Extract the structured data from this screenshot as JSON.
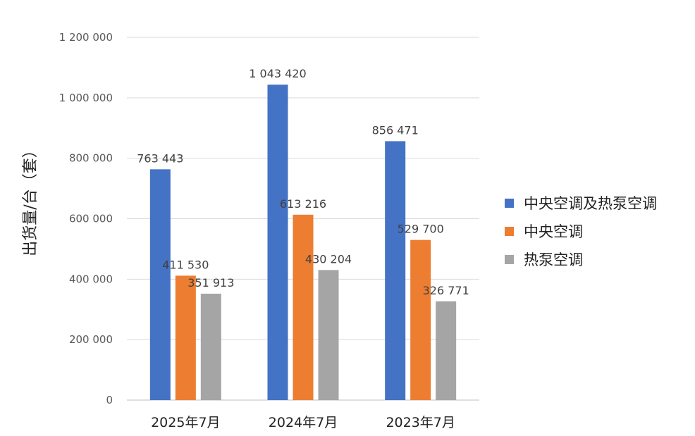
{
  "chart_data": {
    "type": "bar",
    "title": "",
    "xlabel": "",
    "ylabel": "出货量/台（套）",
    "ylim": [
      0,
      1200000
    ],
    "yticks": [
      0,
      200000,
      400000,
      600000,
      800000,
      1000000,
      1200000
    ],
    "ytick_labels": [
      "0",
      "200 000",
      "400 000",
      "600 000",
      "800 000",
      "1 000 000",
      "1 200 000"
    ],
    "grid": true,
    "legend_position": "right",
    "categories": [
      "2025年7月",
      "2024年7月",
      "2023年7月"
    ],
    "series": [
      {
        "name": "中央空调及热泵空调",
        "color": "#4472C4",
        "values": [
          763443,
          1043420,
          856471
        ],
        "labels": [
          "763 443",
          "1 043 420",
          "856 471"
        ]
      },
      {
        "name": "中央空调",
        "color": "#ED7D31",
        "values": [
          411530,
          613216,
          529700
        ],
        "labels": [
          "411 530",
          "613 216",
          "529 700"
        ]
      },
      {
        "name": "热泵空调",
        "color": "#A5A5A5",
        "values": [
          351913,
          430204,
          326771
        ],
        "labels": [
          "351 913",
          "430 204",
          "326 771"
        ]
      }
    ]
  }
}
